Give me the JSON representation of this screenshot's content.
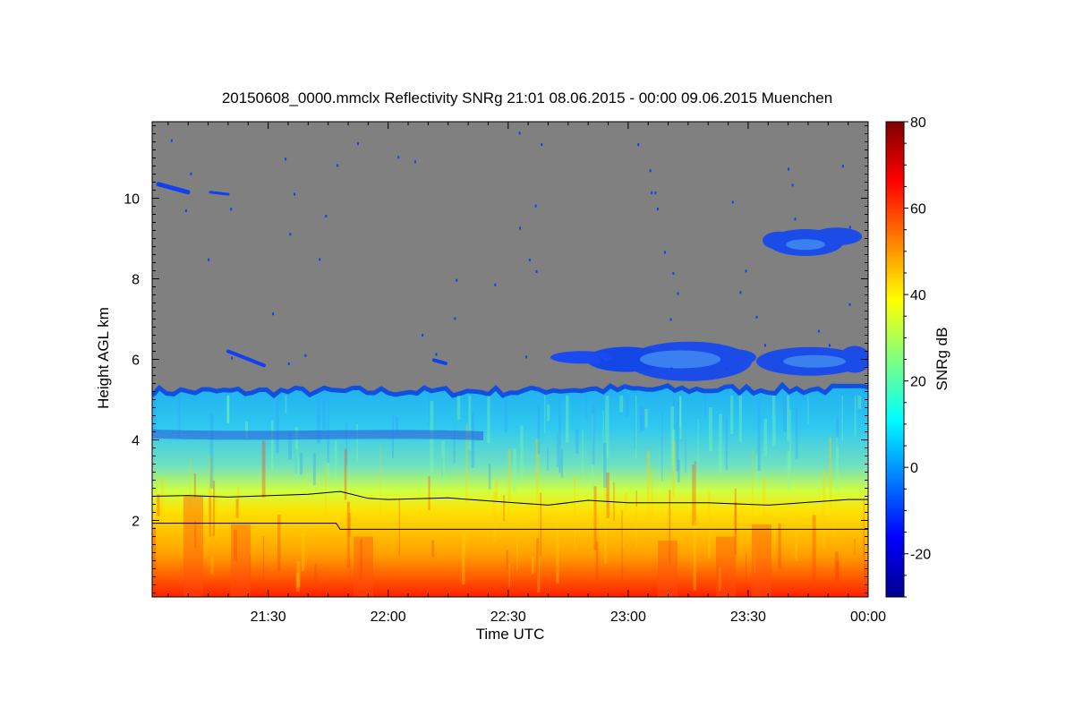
{
  "chart_data": {
    "type": "heatmap",
    "title": "20150608_0000.mmclx Reflectivity SNRg   21:01 08.06.2015 - 00:00 09.06.2015 Muenchen",
    "xlabel": "Time UTC",
    "ylabel": "Height AGL km",
    "colorbar_label": "SNRg dB",
    "x_range": [
      "21:01",
      "00:00"
    ],
    "y_range": [
      0.1,
      11.9
    ],
    "x_ticks": [
      "21:30",
      "22:00",
      "22:30",
      "23:00",
      "23:30",
      "00:00"
    ],
    "y_ticks": [
      2,
      4,
      6,
      8,
      10
    ],
    "colorbar_range": [
      -30,
      80
    ],
    "colorbar_ticks": [
      -20,
      0,
      20,
      40,
      60,
      80
    ],
    "colormap": [
      "#00008f",
      "#0000ff",
      "#0080ff",
      "#00ffff",
      "#80ff80",
      "#ffff00",
      "#ff8000",
      "#ff0000",
      "#800000"
    ],
    "missing_value_color": "#808080",
    "grid": false,
    "overlay_lines": [
      {
        "points": [
          {
            "t": "21:01",
            "h": 2.6
          },
          {
            "t": "21:10",
            "h": 2.62
          },
          {
            "t": "21:20",
            "h": 2.58
          },
          {
            "t": "21:40",
            "h": 2.65
          },
          {
            "t": "21:48",
            "h": 2.72
          },
          {
            "t": "21:55",
            "h": 2.55
          },
          {
            "t": "22:00",
            "h": 2.52
          },
          {
            "t": "22:15",
            "h": 2.56
          },
          {
            "t": "22:30",
            "h": 2.45
          },
          {
            "t": "22:40",
            "h": 2.38
          },
          {
            "t": "22:50",
            "h": 2.5
          },
          {
            "t": "23:00",
            "h": 2.44
          },
          {
            "t": "23:20",
            "h": 2.44
          },
          {
            "t": "23:35",
            "h": 2.38
          },
          {
            "t": "23:45",
            "h": 2.45
          },
          {
            "t": "23:55",
            "h": 2.52
          },
          {
            "t": "00:00",
            "h": 2.52
          }
        ]
      },
      {
        "points": [
          {
            "t": "21:01",
            "h": 1.93
          },
          {
            "t": "21:47",
            "h": 1.93
          },
          {
            "t": "21:48",
            "h": 1.78
          },
          {
            "t": "00:00",
            "h": 1.78
          }
        ]
      }
    ]
  }
}
